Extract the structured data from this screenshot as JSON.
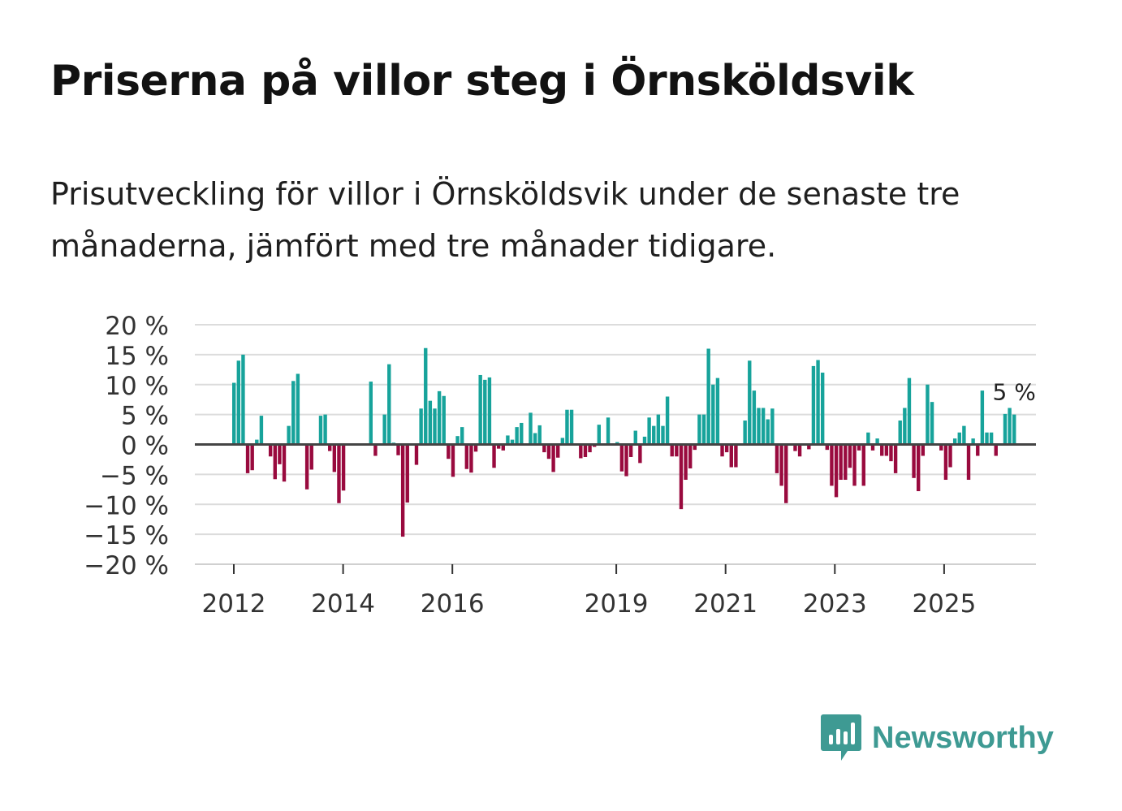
{
  "header": {
    "title": "Priserna på villor steg i Örnsköldsvik",
    "subtitle": "Prisutveckling för villor i Örnsköldsvik under de senaste tre månaderna, jämfört med tre månader tidigare."
  },
  "brand": {
    "name": "Newsworthy",
    "icon": "newsworthy-logo-icon",
    "color": "#3e9a93"
  },
  "colors": {
    "positive": "#17a39b",
    "negative": "#990a3e",
    "grid": "#dcdcdc",
    "zero": "#444444"
  },
  "chart_data": {
    "type": "bar",
    "title": "Priserna på villor steg i Örnsköldsvik",
    "xlabel": "",
    "ylabel": "",
    "ylim": [
      -20,
      20
    ],
    "y_ticks": [
      20,
      15,
      10,
      5,
      0,
      -5,
      -10,
      -15,
      -20
    ],
    "y_tick_labels": [
      "20 %",
      "15 %",
      "10 %",
      "5 %",
      "0 %",
      "−5 %",
      "−10 %",
      "−15 %",
      "−20 %"
    ],
    "x_ticks": [
      "2012",
      "2014",
      "2016",
      "2019",
      "2021",
      "2023",
      "2025"
    ],
    "annotation": {
      "label": "5 %",
      "value": 5
    },
    "start": "2012-01",
    "values": [
      10.3,
      14,
      15,
      -4.8,
      -4.3,
      0.8,
      4.8,
      0,
      -2,
      -5.8,
      -3.3,
      -6.2,
      3.1,
      10.6,
      11.8,
      0,
      -7.5,
      -4.2,
      0,
      4.8,
      5,
      -1.1,
      -4.6,
      -9.8,
      -7.7,
      0,
      0,
      0,
      0,
      0,
      10.5,
      -1.9,
      0,
      5,
      13.4,
      0.3,
      -1.8,
      -15.4,
      -9.7,
      0,
      -3.4,
      6,
      16.1,
      7.3,
      6,
      8.9,
      8.1,
      -2.4,
      -5.4,
      1.4,
      2.9,
      -4.1,
      -4.7,
      -1.2,
      11.6,
      10.8,
      11.2,
      -3.9,
      -0.7,
      -1,
      1.5,
      0.8,
      2.9,
      3.6,
      0,
      5.3,
      1.9,
      3.2,
      -1.3,
      -2.4,
      -4.6,
      -2.2,
      1.1,
      5.8,
      5.8,
      0,
      -2.3,
      -2.1,
      -1.3,
      -0.4,
      3.3,
      0,
      4.5,
      0,
      0.4,
      -4.5,
      -5.3,
      -2.1,
      2.3,
      -3.1,
      1.3,
      4.5,
      3.1,
      5,
      3.1,
      8,
      -2,
      -2,
      -10.8,
      -5.9,
      -4,
      -0.9,
      5,
      5,
      16,
      10,
      11.1,
      -2,
      -1.3,
      -3.8,
      -3.8,
      0,
      4,
      14,
      9,
      6.1,
      6.1,
      4.2,
      6,
      -4.8,
      -6.9,
      -9.8,
      0,
      -1.1,
      -2,
      0,
      -0.8,
      13.1,
      14.1,
      12,
      -0.9,
      -6.9,
      -8.8,
      -5.9,
      -5.9,
      -3.9,
      -6.9,
      -1,
      -6.9,
      2,
      -1,
      1,
      -1.9,
      -1.9,
      -2.8,
      -4.8,
      4,
      6.1,
      11.1,
      -5.6,
      -7.8,
      -1.9,
      10,
      7.1,
      0,
      -1,
      -5.9,
      -3.8,
      1,
      2,
      3.1,
      -5.9,
      1,
      -1.9,
      9,
      2,
      2,
      -1.9,
      0,
      5.1,
      6.1,
      5
    ]
  }
}
